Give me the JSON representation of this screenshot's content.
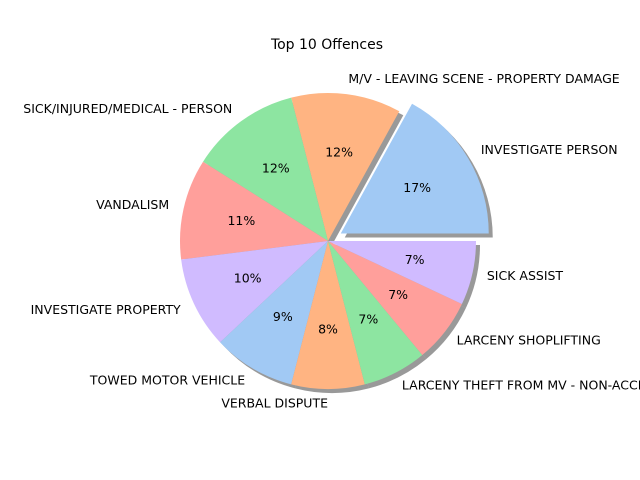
{
  "chart_data": {
    "type": "pie",
    "title": "Top 10 Offences",
    "slices": [
      {
        "label": "INVESTIGATE PERSON",
        "value": 17,
        "pct_label": "17%",
        "color": "#a1c9f4",
        "explode": true
      },
      {
        "label": "M/V - LEAVING SCENE - PROPERTY DAMAGE",
        "value": 12,
        "pct_label": "12%",
        "color": "#ffb482",
        "explode": false
      },
      {
        "label": "SICK/INJURED/MEDICAL - PERSON",
        "value": 12,
        "pct_label": "12%",
        "color": "#8de5a1",
        "explode": false
      },
      {
        "label": "VANDALISM",
        "value": 11,
        "pct_label": "11%",
        "color": "#ff9f9b",
        "explode": false
      },
      {
        "label": "INVESTIGATE PROPERTY",
        "value": 10,
        "pct_label": "10%",
        "color": "#d0bbff",
        "explode": false
      },
      {
        "label": "TOWED MOTOR VEHICLE",
        "value": 9,
        "pct_label": "9%",
        "color": "#a1c9f4",
        "explode": false
      },
      {
        "label": "VERBAL DISPUTE",
        "value": 8,
        "pct_label": "8%",
        "color": "#ffb482",
        "explode": false
      },
      {
        "label": "LARCENY THEFT FROM MV - NON-ACCESSORY",
        "value": 7,
        "pct_label": "7%",
        "color": "#8de5a1",
        "explode": false
      },
      {
        "label": "LARCENY SHOPLIFTING",
        "value": 7,
        "pct_label": "7%",
        "color": "#ff9f9b",
        "explode": false
      },
      {
        "label": "SICK ASSIST",
        "value": 7,
        "pct_label": "7%",
        "color": "#d0bbff",
        "explode": false
      }
    ],
    "start_angle": 0,
    "direction": "counterclockwise",
    "shadow": true,
    "legend": "none"
  }
}
